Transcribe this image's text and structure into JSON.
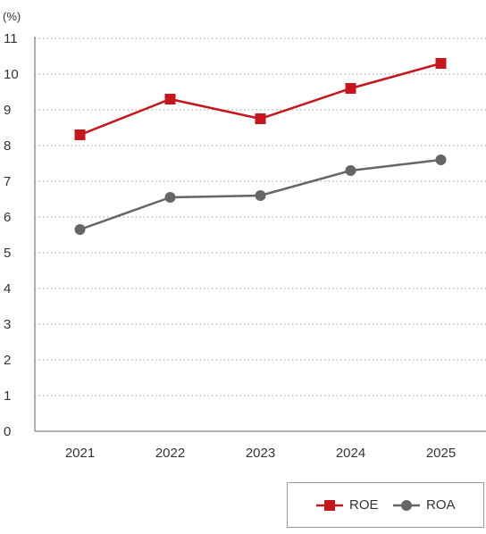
{
  "chart_data": {
    "type": "line",
    "unit_label": "(%)",
    "categories": [
      "2021",
      "2022",
      "2023",
      "2024",
      "2025"
    ],
    "y_ticks": [
      "0",
      "1",
      "2",
      "3",
      "4",
      "5",
      "6",
      "7",
      "8",
      "9",
      "10",
      "11"
    ],
    "ylim": [
      0,
      11
    ],
    "grid": "horizontal dotted",
    "legend_position": "bottom-right",
    "series": [
      {
        "name": "ROE",
        "values": [
          8.3,
          9.3,
          8.75,
          9.6,
          10.3
        ],
        "color": "#c4161c",
        "marker": "square"
      },
      {
        "name": "ROA",
        "values": [
          5.65,
          6.55,
          6.6,
          7.3,
          7.6
        ],
        "color": "#666666",
        "marker": "circle"
      }
    ]
  }
}
